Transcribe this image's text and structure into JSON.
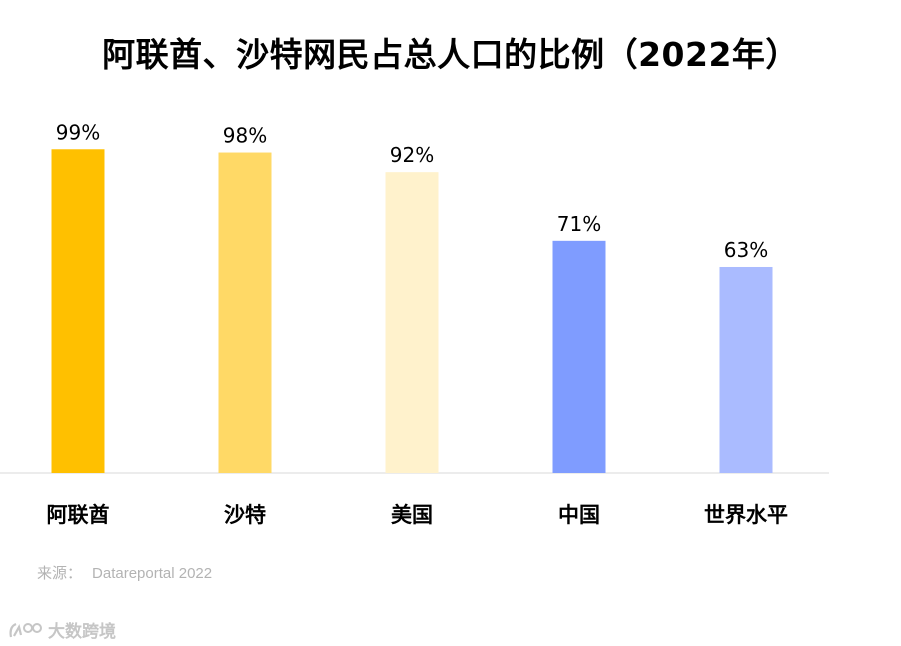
{
  "title": "阿联酋、沙特网民占总人口的比例（2022年）",
  "source": {
    "label": "来源：",
    "text": "Datareportal 2022"
  },
  "watermark": {
    "text": "大数跨境",
    "icon": "brand-logo-icon"
  },
  "chart_data": {
    "type": "bar",
    "title": "阿联酋、沙特网民占总人口的比例（2022年）",
    "categories": [
      "阿联酋",
      "沙特",
      "美国",
      "中国",
      "世界水平"
    ],
    "values": [
      99,
      98,
      92,
      71,
      63
    ],
    "value_labels": [
      "99%",
      "98%",
      "92%",
      "71%",
      "63%"
    ],
    "colors": [
      "#FFC000",
      "#FFD966",
      "#FFF2CC",
      "#7F9CFF",
      "#AABBFF"
    ],
    "unit": "%",
    "ylim": [
      0,
      100
    ],
    "grid": false,
    "legend": "none",
    "xlabel": "",
    "ylabel": ""
  }
}
